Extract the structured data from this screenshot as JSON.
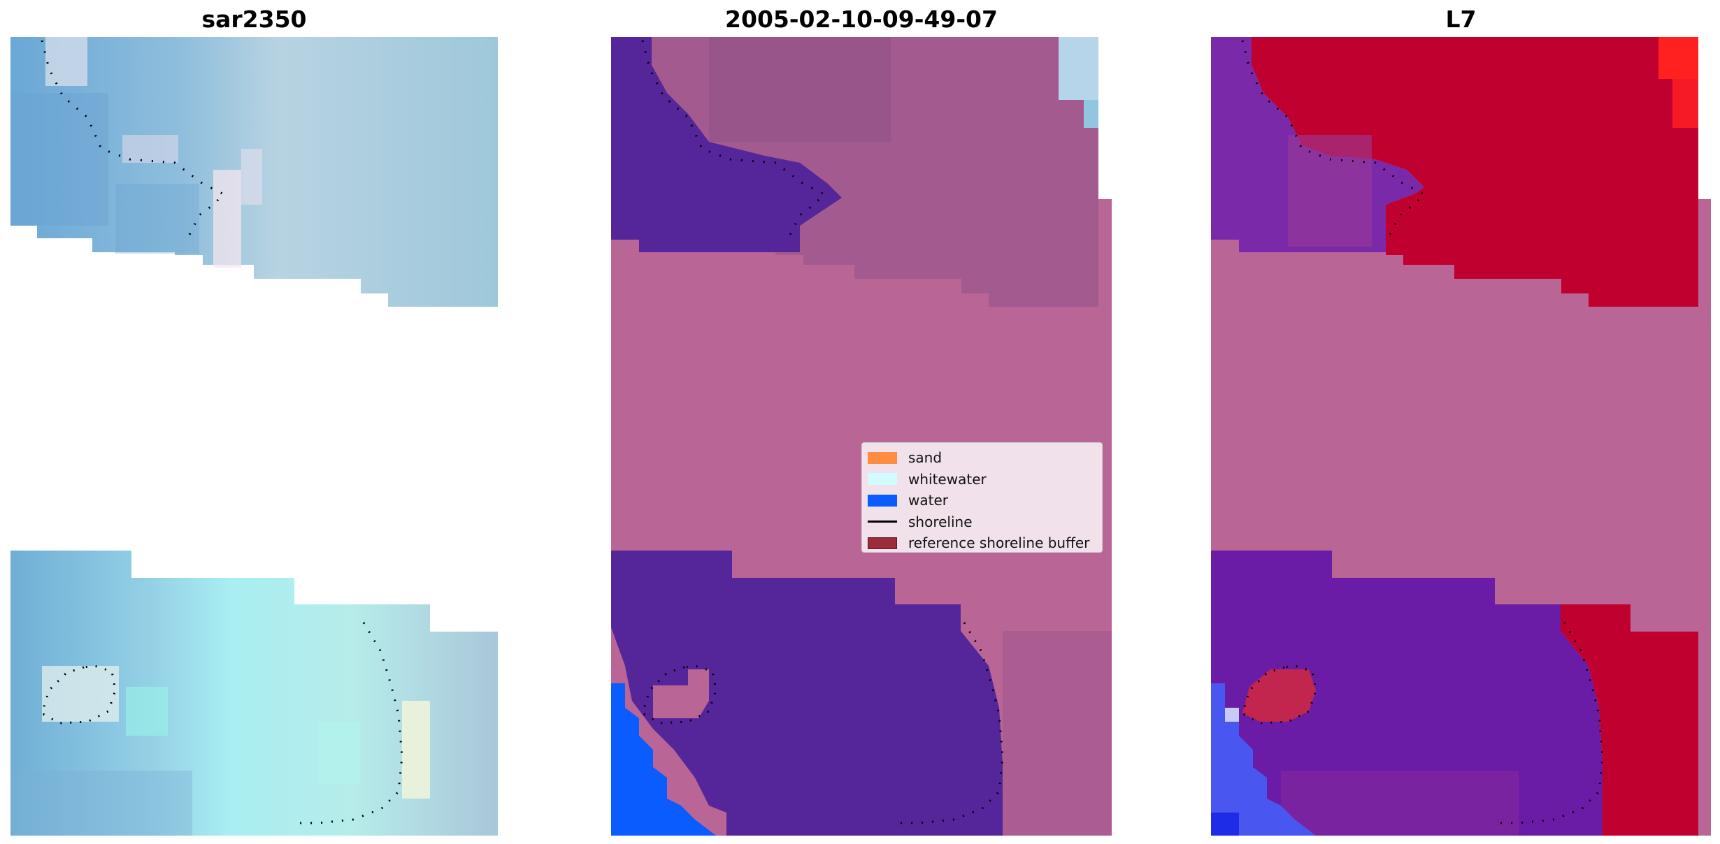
{
  "panels": [
    {
      "title": "sar2350"
    },
    {
      "title": "2005-02-10-09-49-07"
    },
    {
      "title": "L7"
    }
  ],
  "legend": {
    "entries": [
      {
        "label": "sand",
        "color": "#ff8c40",
        "kind": "patch"
      },
      {
        "label": "whitewater",
        "color": "#d2fbff",
        "kind": "patch"
      },
      {
        "label": "water",
        "color": "#0a5cff",
        "kind": "patch"
      },
      {
        "label": "shoreline",
        "color": "#000000",
        "kind": "line"
      },
      {
        "label": "reference shoreline buffer",
        "color": "#9b2d3a",
        "kind": "patch"
      }
    ]
  },
  "colors": {
    "nodata_pink": "#b96596",
    "water_class_purple": "#55259a",
    "sar_blue": "#72acd8",
    "sar_light": "#c8dde6",
    "ndwi_red": "#c8002e",
    "ndwi_purple": "#7a2aa8"
  }
}
